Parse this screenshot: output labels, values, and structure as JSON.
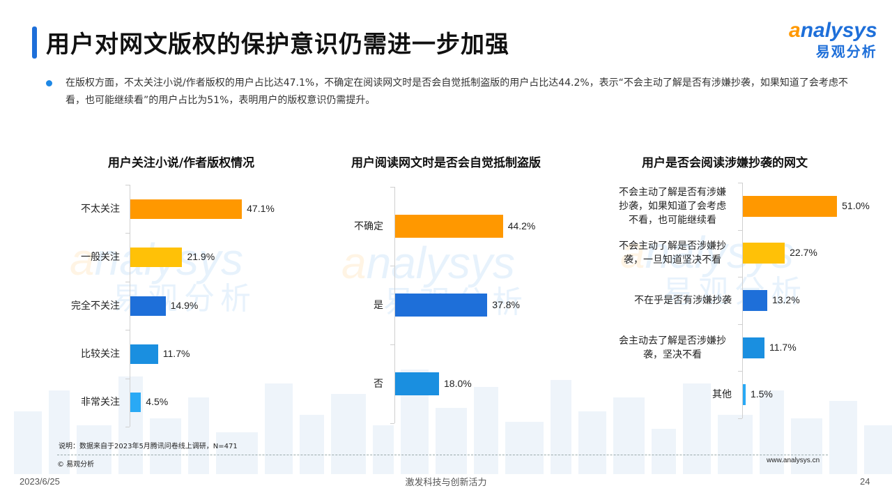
{
  "header": {
    "title": "用户对网文版权的保护意识仍需进一步加强",
    "logo_en_accent": "a",
    "logo_en_rest": "nalysys",
    "logo_cn": "易观分析"
  },
  "intro": {
    "text": "在版权方面，不太关注小说/作者版权的用户占比达47.1%，不确定在阅读网文时是否会自觉抵制盗版的用户占比达44.2%，表示“不会主动了解是否有涉嫌抄袭，如果知道了会考虑不看，也可能继续看”的用户占比为51%，表明用户的版权意识仍需提升。"
  },
  "colors": {
    "orange": "#ff9800",
    "yellow": "#ffc107",
    "blue": "#1e6fd9",
    "lightblue": "#1a8fe0",
    "skyblue": "#29a9f5"
  },
  "chart_data": [
    {
      "type": "bar",
      "orientation": "horizontal",
      "title": "用户关注小说/作者版权情况",
      "categories": [
        "不太关注",
        "一般关注",
        "完全不关注",
        "比较关注",
        "非常关注"
      ],
      "values": [
        47.1,
        21.9,
        14.9,
        11.7,
        4.5
      ],
      "labels": [
        "47.1%",
        "21.9%",
        "14.9%",
        "11.7%",
        "4.5%"
      ],
      "colors": [
        "#ff9800",
        "#ffc107",
        "#1e6fd9",
        "#1a8fe0",
        "#29a9f5"
      ],
      "xlim": [
        0,
        100
      ]
    },
    {
      "type": "bar",
      "orientation": "horizontal",
      "title": "用户阅读网文时是否会自觉抵制盗版",
      "categories": [
        "不确定",
        "是",
        "否"
      ],
      "values": [
        44.2,
        37.8,
        18.0
      ],
      "labels": [
        "44.2%",
        "37.8%",
        "18.0%"
      ],
      "colors": [
        "#ff9800",
        "#1e6fd9",
        "#1a8fe0"
      ],
      "xlim": [
        0,
        100
      ]
    },
    {
      "type": "bar",
      "orientation": "horizontal",
      "title": "用户是否会阅读涉嫌抄袭的网文",
      "categories": [
        "不会主动了解是否有涉嫌抄袭，如果知道了会考虑不看，也可能继续看",
        "不会主动了解是否涉嫌抄袭，一旦知道坚决不看",
        "不在乎是否有涉嫌抄袭",
        "会主动去了解是否涉嫌抄袭，坚决不看",
        "其他"
      ],
      "category_lines": [
        [
          "不会主动了解是否有涉嫌",
          "抄袭，如果知道了会考虑",
          "不看，也可能继续看"
        ],
        [
          "不会主动了解是否涉嫌抄",
          "袭，一旦知道坚决不看"
        ],
        [
          "不在乎是否有涉嫌抄袭"
        ],
        [
          "会主动去了解是否涉嫌抄",
          "袭，坚决不看"
        ],
        [
          "其他"
        ]
      ],
      "values": [
        51.0,
        22.7,
        13.2,
        11.7,
        1.5
      ],
      "labels": [
        "51.0%",
        "22.7%",
        "13.2%",
        "11.7%",
        "1.5%"
      ],
      "colors": [
        "#ff9800",
        "#ffc107",
        "#1e6fd9",
        "#1a8fe0",
        "#29a9f5"
      ],
      "xlim": [
        0,
        100
      ]
    }
  ],
  "footer": {
    "note": "说明：数据来自于2023年5月腾讯问卷线上调研，N=471",
    "copyright": "© 易观分析",
    "site": "www.analysys.cn",
    "date": "2023/6/25",
    "slogan": "激发科技与创新活力",
    "page": "24"
  }
}
